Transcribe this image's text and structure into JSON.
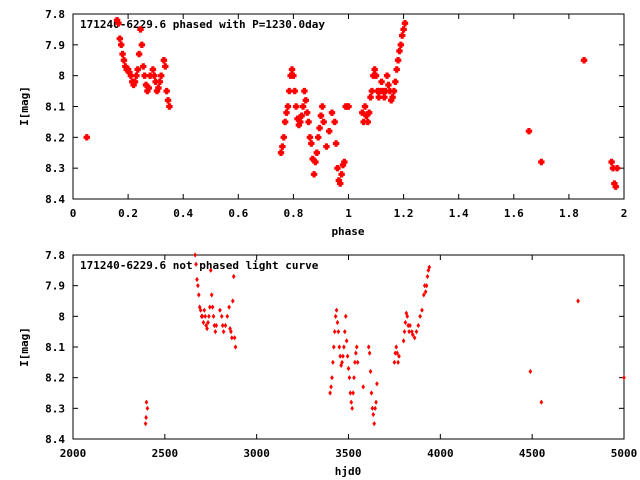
{
  "chart_data": [
    {
      "type": "scatter",
      "title": "171240-6229.6 phased with P=1230.0day",
      "xlabel": "phase",
      "ylabel": "I[mag]",
      "xlim": [
        0,
        2
      ],
      "ylim": [
        7.8,
        8.4
      ],
      "y_inverted": true,
      "xticks": [
        "0",
        "0.2",
        "0.4",
        "0.6",
        "0.8",
        "1",
        "1.2",
        "1.4",
        "1.6",
        "1.8",
        "2"
      ],
      "yticks": [
        "7.8",
        "7.9",
        "8",
        "8.1",
        "8.2",
        "8.3",
        "8.4"
      ],
      "marker_color": "#ff0000",
      "grid": false,
      "series": [
        {
          "points": [
            [
              0.05,
              8.2
            ],
            [
              0.16,
              7.82
            ],
            [
              0.165,
              7.83
            ],
            [
              0.17,
              7.88
            ],
            [
              0.175,
              7.9
            ],
            [
              0.18,
              7.93
            ],
            [
              0.185,
              7.95
            ],
            [
              0.19,
              7.97
            ],
            [
              0.195,
              7.98
            ],
            [
              0.2,
              7.98
            ],
            [
              0.205,
              7.99
            ],
            [
              0.21,
              8.0
            ],
            [
              0.215,
              8.02
            ],
            [
              0.22,
              8.03
            ],
            [
              0.225,
              8.02
            ],
            [
              0.23,
              8.0
            ],
            [
              0.235,
              7.98
            ],
            [
              0.24,
              7.93
            ],
            [
              0.245,
              7.85
            ],
            [
              0.25,
              7.9
            ],
            [
              0.255,
              7.97
            ],
            [
              0.26,
              8.0
            ],
            [
              0.265,
              8.03
            ],
            [
              0.27,
              8.05
            ],
            [
              0.275,
              8.04
            ],
            [
              0.28,
              8.0
            ],
            [
              0.29,
              7.98
            ],
            [
              0.295,
              8.0
            ],
            [
              0.3,
              8.02
            ],
            [
              0.305,
              8.05
            ],
            [
              0.31,
              8.04
            ],
            [
              0.315,
              8.02
            ],
            [
              0.32,
              8.0
            ],
            [
              0.33,
              7.95
            ],
            [
              0.335,
              7.97
            ],
            [
              0.34,
              8.05
            ],
            [
              0.345,
              8.08
            ],
            [
              0.35,
              8.1
            ],
            [
              0.755,
              8.25
            ],
            [
              0.76,
              8.23
            ],
            [
              0.765,
              8.2
            ],
            [
              0.77,
              8.15
            ],
            [
              0.775,
              8.12
            ],
            [
              0.78,
              8.1
            ],
            [
              0.785,
              8.05
            ],
            [
              0.79,
              8.0
            ],
            [
              0.795,
              7.98
            ],
            [
              0.8,
              8.0
            ],
            [
              0.805,
              8.05
            ],
            [
              0.81,
              8.1
            ],
            [
              0.815,
              8.14
            ],
            [
              0.82,
              8.16
            ],
            [
              0.825,
              8.15
            ],
            [
              0.83,
              8.13
            ],
            [
              0.835,
              8.1
            ],
            [
              0.84,
              8.05
            ],
            [
              0.845,
              8.08
            ],
            [
              0.85,
              8.12
            ],
            [
              0.855,
              8.15
            ],
            [
              0.86,
              8.2
            ],
            [
              0.865,
              8.22
            ],
            [
              0.87,
              8.27
            ],
            [
              0.875,
              8.32
            ],
            [
              0.88,
              8.28
            ],
            [
              0.885,
              8.25
            ],
            [
              0.89,
              8.2
            ],
            [
              0.895,
              8.17
            ],
            [
              0.9,
              8.13
            ],
            [
              0.905,
              8.1
            ],
            [
              0.91,
              8.15
            ],
            [
              0.92,
              8.23
            ],
            [
              0.93,
              8.18
            ],
            [
              0.94,
              8.12
            ],
            [
              0.95,
              8.15
            ],
            [
              0.955,
              8.22
            ],
            [
              0.96,
              8.3
            ],
            [
              0.965,
              8.34
            ],
            [
              0.97,
              8.35
            ],
            [
              0.975,
              8.32
            ],
            [
              0.98,
              8.29
            ],
            [
              0.985,
              8.28
            ],
            [
              0.99,
              8.1
            ],
            [
              0.995,
              8.1
            ],
            [
              1.0,
              8.1
            ],
            [
              1.05,
              8.12
            ],
            [
              1.055,
              8.15
            ],
            [
              1.06,
              8.1
            ],
            [
              1.065,
              8.13
            ],
            [
              1.07,
              8.15
            ],
            [
              1.075,
              8.12
            ],
            [
              1.08,
              8.07
            ],
            [
              1.085,
              8.05
            ],
            [
              1.09,
              8.0
            ],
            [
              1.095,
              7.98
            ],
            [
              1.1,
              8.0
            ],
            [
              1.105,
              8.05
            ],
            [
              1.11,
              8.07
            ],
            [
              1.115,
              8.05
            ],
            [
              1.12,
              8.02
            ],
            [
              1.125,
              8.05
            ],
            [
              1.13,
              8.07
            ],
            [
              1.135,
              8.05
            ],
            [
              1.14,
              8.0
            ],
            [
              1.145,
              8.03
            ],
            [
              1.15,
              8.05
            ],
            [
              1.155,
              8.08
            ],
            [
              1.16,
              8.07
            ],
            [
              1.165,
              8.05
            ],
            [
              1.17,
              8.02
            ],
            [
              1.175,
              7.98
            ],
            [
              1.18,
              7.95
            ],
            [
              1.185,
              7.92
            ],
            [
              1.19,
              7.9
            ],
            [
              1.195,
              7.87
            ],
            [
              1.2,
              7.85
            ],
            [
              1.205,
              7.83
            ],
            [
              1.655,
              8.18
            ],
            [
              1.7,
              8.28
            ],
            [
              1.855,
              7.95
            ],
            [
              1.955,
              8.28
            ],
            [
              1.96,
              8.3
            ],
            [
              1.965,
              8.35
            ],
            [
              1.97,
              8.36
            ],
            [
              1.975,
              8.3
            ]
          ]
        }
      ]
    },
    {
      "type": "scatter",
      "title": "171240-6229.6 not phased light curve",
      "xlabel": "hjd0",
      "ylabel": "I[mag]",
      "xlim": [
        2000,
        5000
      ],
      "ylim": [
        7.8,
        8.4
      ],
      "y_inverted": true,
      "xticks": [
        "2000",
        "2500",
        "3000",
        "3500",
        "4000",
        "4500",
        "5000"
      ],
      "yticks": [
        "7.8",
        "7.9",
        "8",
        "8.1",
        "8.2",
        "8.3",
        "8.4"
      ],
      "marker_color": "#ff0000",
      "grid": false,
      "series": [
        {
          "points": [
            [
              2395,
              8.35
            ],
            [
              2398,
              8.33
            ],
            [
              2400,
              8.28
            ],
            [
              2405,
              8.3
            ],
            [
              2665,
              7.8
            ],
            [
              2670,
              7.83
            ],
            [
              2675,
              7.88
            ],
            [
              2680,
              7.9
            ],
            [
              2685,
              7.93
            ],
            [
              2690,
              7.97
            ],
            [
              2695,
              7.98
            ],
            [
              2700,
              8.0
            ],
            [
              2705,
              8.0
            ],
            [
              2710,
              8.02
            ],
            [
              2715,
              7.98
            ],
            [
              2720,
              8.0
            ],
            [
              2725,
              8.03
            ],
            [
              2730,
              8.04
            ],
            [
              2735,
              8.02
            ],
            [
              2740,
              8.0
            ],
            [
              2745,
              7.97
            ],
            [
              2750,
              7.85
            ],
            [
              2755,
              7.93
            ],
            [
              2760,
              7.97
            ],
            [
              2765,
              8.0
            ],
            [
              2770,
              8.03
            ],
            [
              2775,
              8.05
            ],
            [
              2780,
              8.03
            ],
            [
              2800,
              7.98
            ],
            [
              2810,
              8.0
            ],
            [
              2815,
              8.03
            ],
            [
              2820,
              8.05
            ],
            [
              2830,
              8.03
            ],
            [
              2840,
              8.0
            ],
            [
              2850,
              7.97
            ],
            [
              2855,
              8.04
            ],
            [
              2860,
              8.05
            ],
            [
              2865,
              8.07
            ],
            [
              2870,
              7.95
            ],
            [
              2875,
              7.87
            ],
            [
              2880,
              8.07
            ],
            [
              2885,
              8.1
            ],
            [
              3400,
              8.25
            ],
            [
              3405,
              8.23
            ],
            [
              3410,
              8.2
            ],
            [
              3415,
              8.15
            ],
            [
              3420,
              8.1
            ],
            [
              3425,
              8.05
            ],
            [
              3430,
              8.0
            ],
            [
              3435,
              7.98
            ],
            [
              3440,
              8.02
            ],
            [
              3445,
              8.05
            ],
            [
              3450,
              8.1
            ],
            [
              3455,
              8.13
            ],
            [
              3460,
              8.16
            ],
            [
              3465,
              8.15
            ],
            [
              3470,
              8.13
            ],
            [
              3475,
              8.1
            ],
            [
              3480,
              8.05
            ],
            [
              3485,
              8.0
            ],
            [
              3490,
              8.08
            ],
            [
              3495,
              8.13
            ],
            [
              3500,
              8.17
            ],
            [
              3505,
              8.2
            ],
            [
              3510,
              8.25
            ],
            [
              3515,
              8.28
            ],
            [
              3520,
              8.3
            ],
            [
              3525,
              8.25
            ],
            [
              3530,
              8.2
            ],
            [
              3535,
              8.15
            ],
            [
              3540,
              8.12
            ],
            [
              3545,
              8.1
            ],
            [
              3550,
              8.15
            ],
            [
              3580,
              8.23
            ],
            [
              3610,
              8.1
            ],
            [
              3615,
              8.12
            ],
            [
              3620,
              8.18
            ],
            [
              3625,
              8.25
            ],
            [
              3630,
              8.3
            ],
            [
              3635,
              8.32
            ],
            [
              3640,
              8.35
            ],
            [
              3645,
              8.3
            ],
            [
              3650,
              8.28
            ],
            [
              3655,
              8.22
            ],
            [
              3750,
              8.15
            ],
            [
              3755,
              8.12
            ],
            [
              3760,
              8.1
            ],
            [
              3765,
              8.12
            ],
            [
              3770,
              8.15
            ],
            [
              3775,
              8.13
            ],
            [
              3800,
              8.08
            ],
            [
              3805,
              8.05
            ],
            [
              3810,
              8.02
            ],
            [
              3815,
              7.99
            ],
            [
              3820,
              8.0
            ],
            [
              3825,
              8.03
            ],
            [
              3830,
              8.05
            ],
            [
              3835,
              8.03
            ],
            [
              3845,
              8.05
            ],
            [
              3850,
              8.06
            ],
            [
              3860,
              8.07
            ],
            [
              3870,
              8.05
            ],
            [
              3880,
              8.03
            ],
            [
              3890,
              8.0
            ],
            [
              3900,
              7.98
            ],
            [
              3910,
              7.93
            ],
            [
              3915,
              7.9
            ],
            [
              3920,
              7.92
            ],
            [
              3925,
              7.9
            ],
            [
              3930,
              7.87
            ],
            [
              3935,
              7.85
            ],
            [
              3940,
              7.84
            ],
            [
              4490,
              8.18
            ],
            [
              4550,
              8.28
            ],
            [
              4750,
              7.95
            ],
            [
              5000,
              8.2
            ]
          ]
        }
      ]
    }
  ]
}
